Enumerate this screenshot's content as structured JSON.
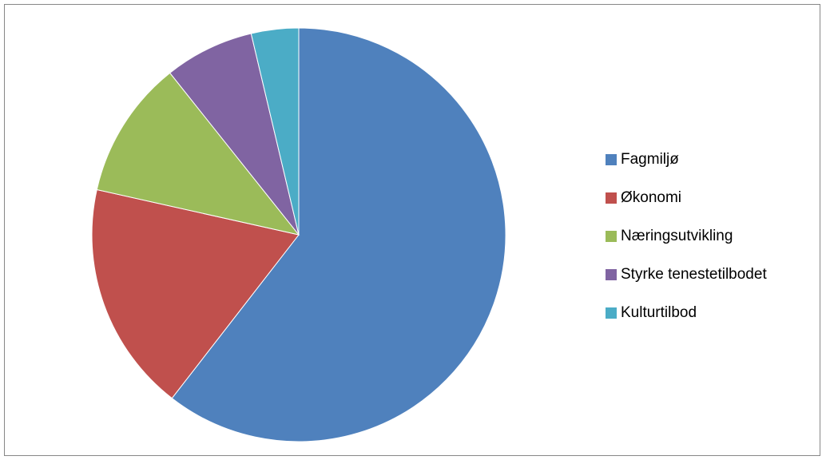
{
  "chart_data": {
    "type": "pie",
    "title": "",
    "start_angle_deg": 0,
    "direction": "clockwise",
    "legend_position": "right",
    "slices": [
      {
        "label": "Fagmiljø",
        "value": 60.5,
        "color": "#4F81BD"
      },
      {
        "label": "Økonomi",
        "value": 18.0,
        "color": "#C0504D"
      },
      {
        "label": "Næringsutvikling",
        "value": 10.8,
        "color": "#9BBB59"
      },
      {
        "label": "Styrke tenestetilbodet",
        "value": 7.0,
        "color": "#8064A2"
      },
      {
        "label": "Kulturtilbod",
        "value": 3.7,
        "color": "#4BACC6"
      }
    ]
  }
}
